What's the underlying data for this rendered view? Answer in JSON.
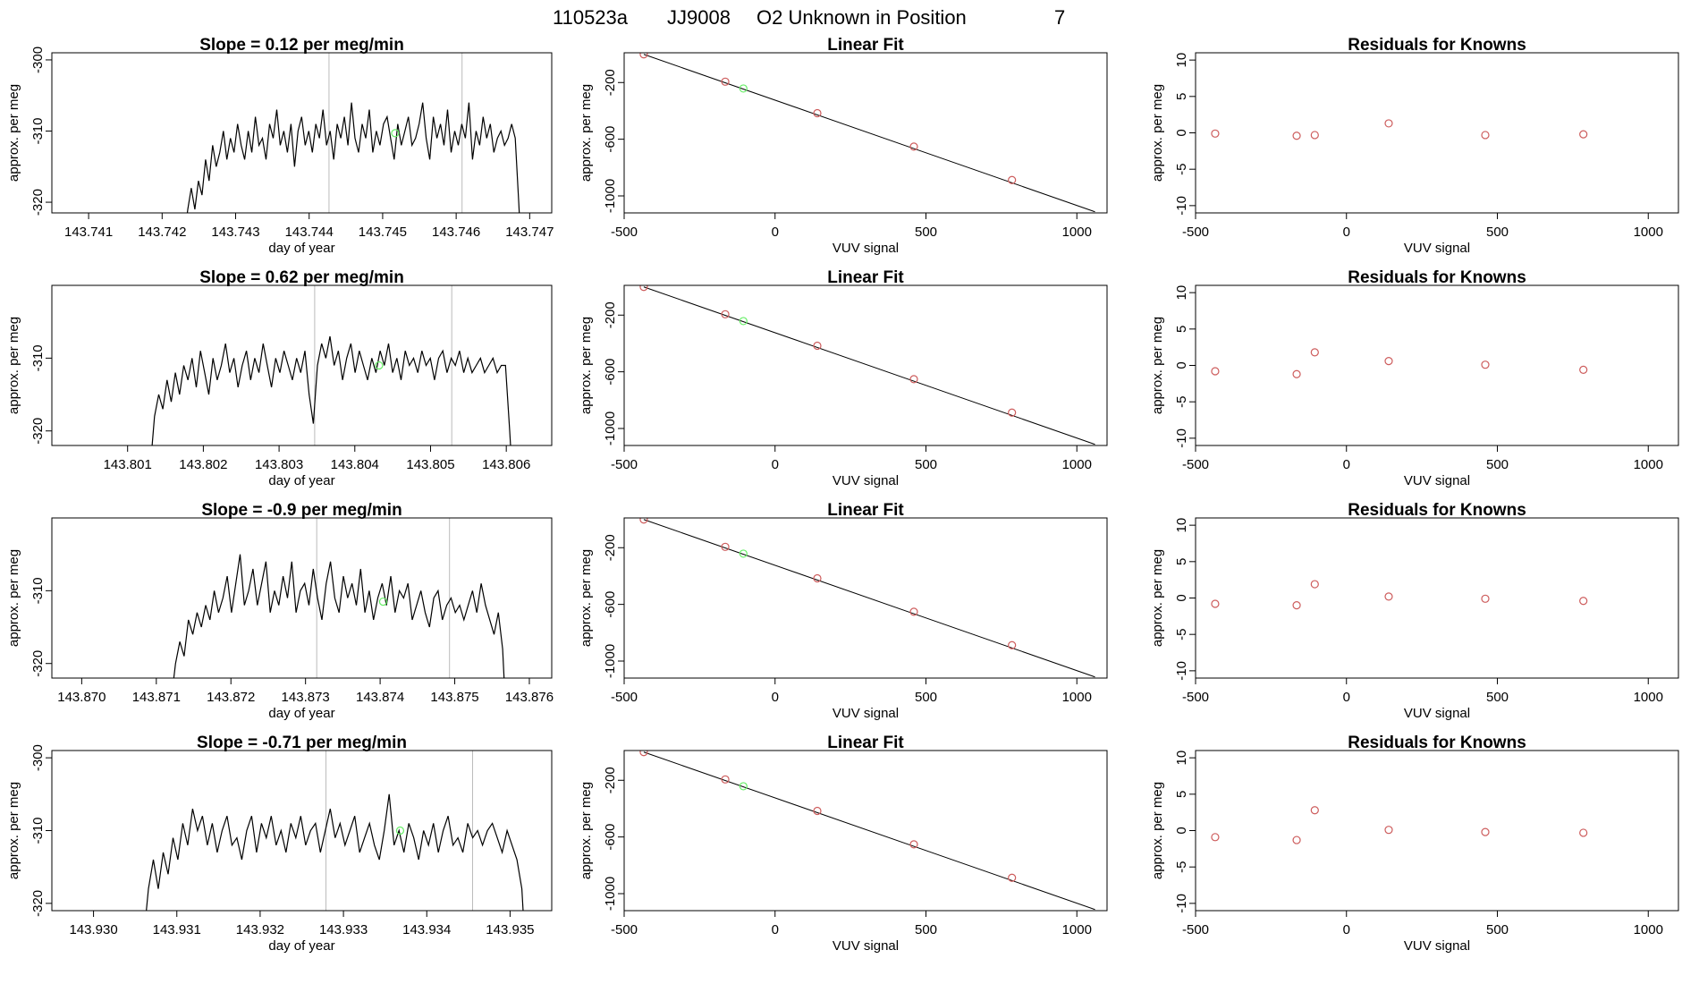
{
  "suptitle": {
    "run_id": "110523a",
    "tank": "JJ9008",
    "description": "O2 Unknown in Position",
    "position": "7"
  },
  "colors": {
    "line": "#000000",
    "known_points": "#cd5c5c",
    "unknown_point": "#66ee66",
    "vline": "#bbbbbb"
  },
  "chart_data": [
    {
      "type": "line",
      "row": 0,
      "title": "Slope =  0.12  per meg/min",
      "xlabel": "day of year",
      "ylabel": "approx. per meg",
      "xlim": [
        143.7405,
        143.7473
      ],
      "ylim": [
        -321.5,
        -299
      ],
      "xticks": [
        "143.741",
        "143.742",
        "143.743",
        "143.744",
        "143.745",
        "143.746",
        "143.747"
      ],
      "yticks": [
        "-300",
        "-310",
        "-320"
      ],
      "trace_start": 143.7423,
      "trace_end": 143.7469,
      "vlines": [
        143.74427,
        143.74608
      ],
      "unknown_point": {
        "x": 143.74517,
        "y": -310.3
      },
      "series": [
        {
          "name": "trace",
          "values": [
            -325,
            -321,
            -318,
            -321,
            -317,
            -319,
            -314,
            -317,
            -312,
            -315,
            -313,
            -310,
            -314,
            -311,
            -313,
            -309,
            -312,
            -314,
            -310,
            -313,
            -308,
            -312,
            -311,
            -314,
            -309,
            -311,
            -307,
            -312,
            -310,
            -313,
            -309,
            -315,
            -310,
            -308,
            -312,
            -310,
            -313,
            -309,
            -311,
            -307,
            -312,
            -310,
            -314,
            -309,
            -311,
            -308,
            -312,
            -306,
            -311,
            -313,
            -309,
            -311,
            -307,
            -313,
            -310,
            -312,
            -309,
            -308,
            -311,
            -314,
            -309,
            -312,
            -310,
            -308,
            -312,
            -311,
            -309,
            -306,
            -311,
            -314,
            -308,
            -311,
            -309,
            -312,
            -307,
            -313,
            -310,
            -312,
            -309,
            -311,
            -306,
            -314,
            -310,
            -312,
            -308,
            -311,
            -309,
            -313,
            -311,
            -310,
            -312,
            -311,
            -309,
            -311,
            -320,
            -330
          ]
        }
      ]
    },
    {
      "type": "scatter",
      "row": 0,
      "title": "Linear Fit",
      "xlabel": "VUV signal",
      "ylabel": "approx. per meg",
      "xlim": [
        -500,
        1100
      ],
      "ylim": [
        -1120,
        10
      ],
      "xticks": [
        "-500",
        "0",
        "500",
        "1000"
      ],
      "yticks": [
        "-200",
        "-600",
        "-1000"
      ],
      "fit_line": {
        "x": [
          -435,
          1060
        ],
        "y": [
          -1,
          -1112
        ]
      },
      "known_points": {
        "x": [
          -435,
          -165,
          140,
          460,
          785
        ],
        "y": [
          -1,
          -194,
          -416,
          -652,
          -888
        ]
      },
      "unknown_point": {
        "x": -105,
        "y": -242
      }
    },
    {
      "type": "scatter",
      "row": 0,
      "title": "Residuals for Knowns",
      "xlabel": "VUV signal",
      "ylabel": "approx. per meg",
      "xlim": [
        -500,
        1100
      ],
      "ylim": [
        -11,
        11
      ],
      "xticks": [
        "-500",
        "0",
        "500",
        "1000"
      ],
      "yticks": [
        "-10",
        "-5",
        "0",
        "5",
        "10"
      ],
      "points": {
        "x": [
          -435,
          -165,
          -105,
          140,
          460,
          785
        ],
        "y": [
          -0.1,
          -0.4,
          -0.3,
          1.3,
          -0.3,
          -0.2
        ]
      }
    },
    {
      "type": "line",
      "row": 1,
      "title": "Slope =  0.62  per meg/min",
      "xlabel": "day of year",
      "ylabel": "approx. per meg",
      "xlim": [
        143.8,
        143.8066
      ],
      "ylim": [
        -322,
        -300
      ],
      "xticks": [
        "143.801",
        "143.802",
        "143.803",
        "143.804",
        "143.805",
        "143.806"
      ],
      "yticks": [
        "-310",
        "-320"
      ],
      "trace_start": 143.8013,
      "trace_end": 143.8061,
      "vlines": [
        143.80347,
        143.80528
      ],
      "unknown_point": {
        "x": 143.80432,
        "y": -311.0
      },
      "series": [
        {
          "name": "trace",
          "values": [
            -325,
            -318,
            -315,
            -317,
            -313,
            -316,
            -312,
            -315,
            -311,
            -313,
            -310,
            -314,
            -309,
            -312,
            -315,
            -310,
            -313,
            -311,
            -308,
            -312,
            -310,
            -314,
            -311,
            -309,
            -313,
            -310,
            -312,
            -308,
            -311,
            -314,
            -310,
            -312,
            -309,
            -311,
            -313,
            -310,
            -312,
            -309,
            -315,
            -319,
            -311,
            -308,
            -310,
            -307,
            -311,
            -309,
            -313,
            -310,
            -308,
            -312,
            -309,
            -311,
            -313,
            -310,
            -312,
            -309,
            -311,
            -308,
            -312,
            -310,
            -313,
            -309,
            -311,
            -310,
            -312,
            -309,
            -311,
            -310,
            -313,
            -310,
            -309,
            -312,
            -310,
            -311,
            -309,
            -312,
            -310,
            -312,
            -311,
            -310,
            -312,
            -311,
            -310,
            -312,
            -311,
            -311,
            -320,
            -330
          ]
        }
      ]
    },
    {
      "type": "scatter",
      "row": 1,
      "title": "Linear Fit",
      "xlabel": "VUV signal",
      "ylabel": "approx. per meg",
      "xlim": [
        -500,
        1100
      ],
      "ylim": [
        -1120,
        10
      ],
      "xticks": [
        "-500",
        "0",
        "500",
        "1000"
      ],
      "yticks": [
        "-200",
        "-600",
        "-1000"
      ],
      "fit_line": {
        "x": [
          -435,
          1060
        ],
        "y": [
          -1,
          -1112
        ]
      },
      "known_points": {
        "x": [
          -435,
          -165,
          140,
          460,
          785
        ],
        "y": [
          -1,
          -194,
          -416,
          -652,
          -888
        ]
      },
      "unknown_point": {
        "x": -105,
        "y": -242
      }
    },
    {
      "type": "scatter",
      "row": 1,
      "title": "Residuals for Knowns",
      "xlabel": "VUV signal",
      "ylabel": "approx. per meg",
      "xlim": [
        -500,
        1100
      ],
      "ylim": [
        -11,
        11
      ],
      "xticks": [
        "-500",
        "0",
        "500",
        "1000"
      ],
      "yticks": [
        "-10",
        "-5",
        "0",
        "5",
        "10"
      ],
      "points": {
        "x": [
          -435,
          -165,
          -105,
          140,
          460,
          785
        ],
        "y": [
          -0.8,
          -1.2,
          1.8,
          0.6,
          0.1,
          -0.6
        ]
      }
    },
    {
      "type": "line",
      "row": 2,
      "title": "Slope =  -0.9  per meg/min",
      "xlabel": "day of year",
      "ylabel": "approx. per meg",
      "xlim": [
        143.8696,
        143.8763
      ],
      "ylim": [
        -322,
        -300
      ],
      "xticks": [
        "143.870",
        "143.871",
        "143.872",
        "143.873",
        "143.874",
        "143.875",
        "143.876"
      ],
      "yticks": [
        "-310",
        "-320"
      ],
      "trace_start": 143.8712,
      "trace_end": 143.8757,
      "vlines": [
        143.87315,
        143.87493
      ],
      "unknown_point": {
        "x": 143.87404,
        "y": -311.5
      },
      "series": [
        {
          "name": "trace",
          "values": [
            -325,
            -320,
            -317,
            -319,
            -314,
            -316,
            -313,
            -315,
            -312,
            -314,
            -310,
            -313,
            -311,
            -308,
            -313,
            -309,
            -305,
            -312,
            -310,
            -307,
            -312,
            -309,
            -306,
            -313,
            -310,
            -312,
            -308,
            -311,
            -306,
            -313,
            -310,
            -309,
            -312,
            -307,
            -311,
            -314,
            -309,
            -306,
            -311,
            -313,
            -308,
            -311,
            -309,
            -312,
            -307,
            -313,
            -310,
            -314,
            -311,
            -309,
            -312,
            -308,
            -313,
            -310,
            -311,
            -309,
            -314,
            -312,
            -310,
            -313,
            -315,
            -311,
            -310,
            -314,
            -312,
            -311,
            -313,
            -312,
            -314,
            -312,
            -310,
            -313,
            -309,
            -312,
            -314,
            -316,
            -313,
            -318,
            -330
          ]
        }
      ]
    },
    {
      "type": "scatter",
      "row": 2,
      "title": "Linear Fit",
      "xlabel": "VUV signal",
      "ylabel": "approx. per meg",
      "xlim": [
        -500,
        1100
      ],
      "ylim": [
        -1120,
        10
      ],
      "xticks": [
        "-500",
        "0",
        "500",
        "1000"
      ],
      "yticks": [
        "-200",
        "-600",
        "-1000"
      ],
      "fit_line": {
        "x": [
          -435,
          1060
        ],
        "y": [
          -1,
          -1112
        ]
      },
      "known_points": {
        "x": [
          -435,
          -165,
          140,
          460,
          785
        ],
        "y": [
          -1,
          -194,
          -416,
          -652,
          -888
        ]
      },
      "unknown_point": {
        "x": -105,
        "y": -242
      }
    },
    {
      "type": "scatter",
      "row": 2,
      "title": "Residuals for Knowns",
      "xlabel": "VUV signal",
      "ylabel": "approx. per meg",
      "xlim": [
        -500,
        1100
      ],
      "ylim": [
        -11,
        11
      ],
      "xticks": [
        "-500",
        "0",
        "500",
        "1000"
      ],
      "yticks": [
        "-10",
        "-5",
        "0",
        "5",
        "10"
      ],
      "points": {
        "x": [
          -435,
          -165,
          -105,
          140,
          460,
          785
        ],
        "y": [
          -0.8,
          -1.0,
          1.9,
          0.2,
          -0.1,
          -0.4
        ]
      }
    },
    {
      "type": "line",
      "row": 3,
      "title": "Slope =  -0.71  per meg/min",
      "xlabel": "day of year",
      "ylabel": "approx. per meg",
      "xlim": [
        143.9295,
        143.9355
      ],
      "ylim": [
        -321,
        -299
      ],
      "xticks": [
        "143.930",
        "143.931",
        "143.932",
        "143.933",
        "143.934",
        "143.935"
      ],
      "yticks": [
        "-300",
        "-310",
        "-320"
      ],
      "trace_start": 143.9306,
      "trace_end": 143.9352,
      "vlines": [
        143.93279,
        143.93455
      ],
      "unknown_point": {
        "x": 143.93368,
        "y": -310.0
      },
      "series": [
        {
          "name": "trace",
          "values": [
            -325,
            -318,
            -314,
            -318,
            -313,
            -316,
            -311,
            -314,
            -309,
            -312,
            -307,
            -310,
            -308,
            -312,
            -309,
            -313,
            -310,
            -308,
            -312,
            -311,
            -314,
            -310,
            -308,
            -313,
            -309,
            -311,
            -308,
            -312,
            -310,
            -313,
            -309,
            -311,
            -308,
            -312,
            -310,
            -309,
            -313,
            -310,
            -307,
            -311,
            -309,
            -312,
            -310,
            -308,
            -313,
            -311,
            -309,
            -312,
            -314,
            -310,
            -305,
            -312,
            -310,
            -313,
            -309,
            -311,
            -314,
            -310,
            -312,
            -309,
            -313,
            -310,
            -308,
            -312,
            -311,
            -313,
            -309,
            -311,
            -310,
            -312,
            -310,
            -309,
            -311,
            -313,
            -310,
            -312,
            -314,
            -318,
            -330
          ]
        }
      ]
    },
    {
      "type": "scatter",
      "row": 3,
      "title": "Linear Fit",
      "xlabel": "VUV signal",
      "ylabel": "approx. per meg",
      "xlim": [
        -500,
        1100
      ],
      "ylim": [
        -1120,
        10
      ],
      "xticks": [
        "-500",
        "0",
        "500",
        "1000"
      ],
      "yticks": [
        "-200",
        "-600",
        "-1000"
      ],
      "fit_line": {
        "x": [
          -435,
          1060
        ],
        "y": [
          -1,
          -1112
        ]
      },
      "known_points": {
        "x": [
          -435,
          -165,
          140,
          460,
          785
        ],
        "y": [
          -1,
          -194,
          -416,
          -652,
          -888
        ]
      },
      "unknown_point": {
        "x": -105,
        "y": -242
      }
    },
    {
      "type": "scatter",
      "row": 3,
      "title": "Residuals for Knowns",
      "xlabel": "VUV signal",
      "ylabel": "approx. per meg",
      "xlim": [
        -500,
        1100
      ],
      "ylim": [
        -11,
        11
      ],
      "xticks": [
        "-500",
        "0",
        "500",
        "1000"
      ],
      "yticks": [
        "-10",
        "-5",
        "0",
        "5",
        "10"
      ],
      "points": {
        "x": [
          -435,
          -165,
          -105,
          140,
          460,
          785
        ],
        "y": [
          -0.9,
          -1.3,
          2.8,
          0.1,
          -0.2,
          -0.3
        ]
      }
    }
  ]
}
